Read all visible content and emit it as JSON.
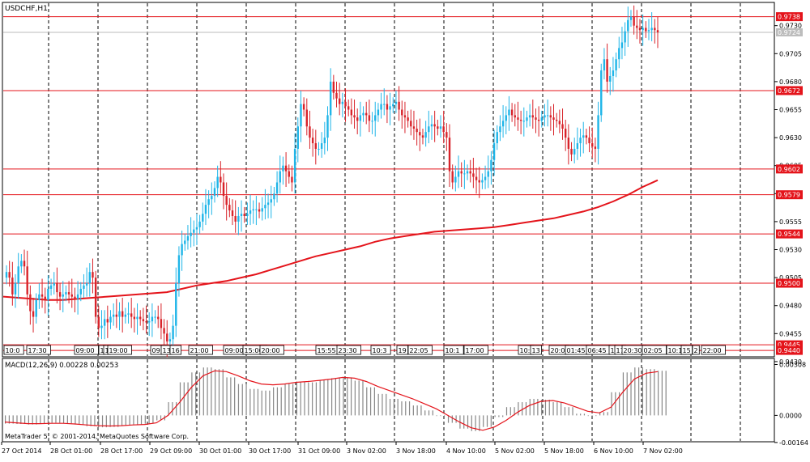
{
  "symbol_label": "USDCHF,H1",
  "indicator_label": "MACD(12,26,9) 0.00228 0.00253",
  "copyright": "MetaTrader 5, © 2001-2014, MetaQuotes Software Corp.",
  "colors": {
    "bull": "#1fb5e8",
    "bear": "#d8232a",
    "ma": "#e4141b",
    "hline": "#e4141b",
    "grid": "#000000",
    "histogram": "#888888",
    "signal": "#e4141b"
  },
  "chart_data": [
    {
      "type": "candlestick",
      "title": "USDCHF,H1",
      "ylim": [
        0.9435,
        0.975
      ],
      "price_ticks": [
        "0.9730",
        "0.9705",
        "0.9680",
        "0.9655",
        "0.9630",
        "0.9605",
        "0.9580",
        "0.9555",
        "0.9530",
        "0.9505",
        "0.9480",
        "0.9455",
        "0.9430"
      ],
      "current_price": "0.9724",
      "horizontal_levels": [
        "0.9738",
        "0.9672",
        "0.9602",
        "0.9579",
        "0.9544",
        "0.9500",
        "0.9445",
        "0.9440"
      ],
      "x_ticks": [
        "27 Oct 2014",
        "28 Oct 01:00",
        "28 Oct 17:00",
        "29 Oct 09:00",
        "30 Oct 01:00",
        "30 Oct 17:00",
        "31 Oct 09:00",
        "3 Nov 02:00",
        "3 Nov 18:00",
        "4 Nov 10:00",
        "5 Nov 02:00",
        "5 Nov 18:00",
        "6 Nov 10:00",
        "7 Nov 02:00"
      ],
      "session_labels": [
        "10:0",
        "17:30",
        "09:00",
        "1",
        "1",
        "19:00",
        "09:",
        "13",
        "16",
        "21:00",
        "09:00",
        "15:00",
        "20:00",
        "15:55",
        "23:30",
        "10:3",
        "19",
        "22:05",
        "10:1",
        "17:00",
        "10:",
        "13",
        "20:0",
        "01:45",
        "06:45",
        "1",
        "17",
        "20:30",
        "02:05",
        "10:1",
        "15",
        "2",
        "22:00"
      ],
      "close_series": [
        0.951,
        0.9505,
        0.949,
        0.95,
        0.9515,
        0.952,
        0.9515,
        0.949,
        0.9475,
        0.947,
        0.9485,
        0.949,
        0.9488,
        0.9485,
        0.9495,
        0.9498,
        0.95,
        0.9492,
        0.9488,
        0.949,
        0.9492,
        0.949,
        0.9488,
        0.9486,
        0.949,
        0.9495,
        0.9498,
        0.95,
        0.951,
        0.9505,
        0.947,
        0.946,
        0.9462,
        0.9468,
        0.9465,
        0.947,
        0.9472,
        0.947,
        0.9475,
        0.947,
        0.9472,
        0.9473,
        0.947,
        0.9468,
        0.947,
        0.9468,
        0.9466,
        0.9465,
        0.9466,
        0.947,
        0.947,
        0.9468,
        0.946,
        0.9455,
        0.9448,
        0.945,
        0.9462,
        0.95,
        0.9525,
        0.9535,
        0.9538,
        0.9542,
        0.9545,
        0.9548,
        0.955,
        0.9555,
        0.9562,
        0.957,
        0.9575,
        0.9578,
        0.9585,
        0.9595,
        0.959,
        0.9578,
        0.957,
        0.9565,
        0.956,
        0.9555,
        0.956,
        0.9562,
        0.956,
        0.9562,
        0.9565,
        0.9566,
        0.9566,
        0.9564,
        0.9567,
        0.957,
        0.9572,
        0.9575,
        0.958,
        0.959,
        0.96,
        0.9605,
        0.96,
        0.9595,
        0.959,
        0.962,
        0.964,
        0.966,
        0.9655,
        0.964,
        0.963,
        0.9625,
        0.962,
        0.962,
        0.9625,
        0.963,
        0.965,
        0.968,
        0.967,
        0.9665,
        0.966,
        0.9662,
        0.9658,
        0.9655,
        0.965,
        0.9648,
        0.9645,
        0.965,
        0.9652,
        0.965,
        0.9645,
        0.9645,
        0.965,
        0.9655,
        0.966,
        0.966,
        0.9655,
        0.9658,
        0.966,
        0.9662,
        0.9655,
        0.965,
        0.9648,
        0.9645,
        0.964,
        0.9638,
        0.9635,
        0.9632,
        0.963,
        0.9635,
        0.964,
        0.9642,
        0.964,
        0.9638,
        0.964,
        0.9635,
        0.963,
        0.96,
        0.959,
        0.9595,
        0.96,
        0.9598,
        0.9598,
        0.96,
        0.9598,
        0.9595,
        0.9592,
        0.959,
        0.9592,
        0.9595,
        0.96,
        0.961,
        0.9625,
        0.9635,
        0.964,
        0.9645,
        0.965,
        0.9655,
        0.965,
        0.9648,
        0.9646,
        0.9645,
        0.9645,
        0.9648,
        0.965,
        0.9648,
        0.9646,
        0.9645,
        0.9648,
        0.965,
        0.965,
        0.9648,
        0.9646,
        0.9645,
        0.9642,
        0.9638,
        0.963,
        0.962,
        0.9615,
        0.962,
        0.9625,
        0.963,
        0.9632,
        0.963,
        0.9625,
        0.9622,
        0.962,
        0.965,
        0.969,
        0.97,
        0.968,
        0.9685,
        0.969,
        0.97,
        0.971,
        0.9715,
        0.9725,
        0.9735,
        0.9738,
        0.973,
        0.9728,
        0.9726,
        0.9728,
        0.9725,
        0.9726,
        0.9728,
        0.9726,
        0.9724
      ],
      "ma_series": [
        0.9488,
        0.9487,
        0.9486,
        0.9485,
        0.9485,
        0.9486,
        0.9487,
        0.9488,
        0.9489,
        0.949,
        0.9491,
        0.9492,
        0.9495,
        0.9498,
        0.95,
        0.9502,
        0.9505,
        0.9508,
        0.9512,
        0.9516,
        0.952,
        0.9524,
        0.9527,
        0.953,
        0.9533,
        0.9537,
        0.954,
        0.9542,
        0.9544,
        0.9546,
        0.9547,
        0.9548,
        0.9549,
        0.955,
        0.9552,
        0.9554,
        0.9556,
        0.9558,
        0.9561,
        0.9564,
        0.9568,
        0.9573,
        0.9579,
        0.9586,
        0.9592
      ],
      "macd_ylim": [
        -0.00145,
        0.0033
      ],
      "macd_ticks": [
        "0.00308",
        "0.0000",
        "-0.00164"
      ],
      "macd_main": [
        -0.0005,
        -0.00052,
        -0.00055,
        -0.0005,
        -0.00045,
        -0.00048,
        -0.00055,
        -0.00065,
        -0.00072,
        -0.0007,
        -0.00062,
        -0.00055,
        -0.0005,
        -0.0003,
        0.0008,
        0.002,
        0.0026,
        0.0029,
        0.0028,
        0.0023,
        0.0019,
        0.0016,
        0.0015,
        0.0017,
        0.0019,
        0.00205,
        0.002,
        0.00215,
        0.00225,
        0.0023,
        0.0021,
        0.0017,
        0.0013,
        0.001,
        0.00085,
        0.0006,
        0.0003,
        0.0,
        -0.00045,
        -0.0008,
        -0.00095,
        -0.0007,
        -0.0001,
        0.0005,
        0.0008,
        0.001,
        0.00095,
        0.0008,
        0.0005,
        0.0001,
        0.0,
        0.0002,
        0.0014,
        0.0026,
        0.0029,
        0.0028,
        0.0027
      ],
      "macd_signal": [
        -0.0004,
        -0.00045,
        -0.0005,
        -0.0005,
        -0.00048,
        -0.00048,
        -0.00052,
        -0.00058,
        -0.00062,
        -0.00064,
        -0.00062,
        -0.00058,
        -0.00055,
        -0.00045,
        0.0,
        0.0008,
        0.0017,
        0.0024,
        0.0027,
        0.00265,
        0.0024,
        0.0021,
        0.0019,
        0.00185,
        0.0019,
        0.002,
        0.00205,
        0.00212,
        0.0022,
        0.0023,
        0.00225,
        0.00205,
        0.00175,
        0.0015,
        0.00125,
        0.001,
        0.0007,
        0.0004,
        0.0,
        -0.0004,
        -0.00075,
        -0.0009,
        -0.0007,
        -0.0003,
        0.0002,
        0.0006,
        0.00085,
        0.0009,
        0.00075,
        0.0005,
        0.00025,
        0.00015,
        0.0005,
        0.0014,
        0.0022,
        0.00255,
        0.00265
      ]
    }
  ]
}
